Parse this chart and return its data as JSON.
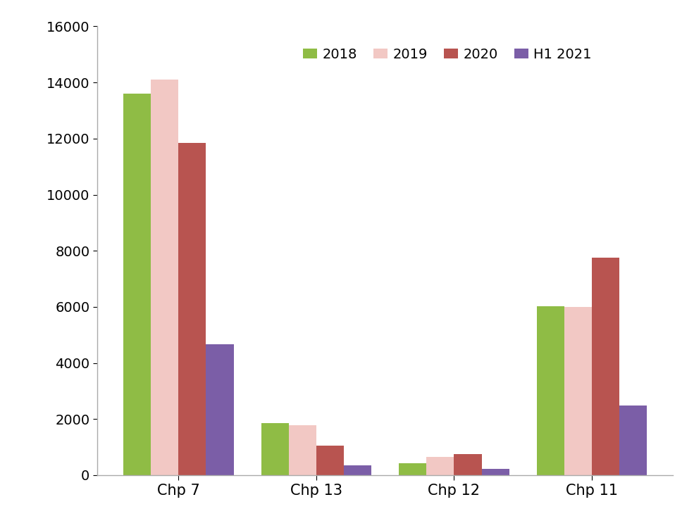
{
  "categories": [
    "Chp 7",
    "Chp 13",
    "Chp 12",
    "Chp 11"
  ],
  "series": {
    "2018": [
      13600,
      1850,
      420,
      6020
    ],
    "2019": [
      14100,
      1780,
      660,
      6000
    ],
    "2020": [
      11850,
      1060,
      760,
      7750
    ],
    "H1 2021": [
      4680,
      360,
      220,
      2490
    ]
  },
  "colors": {
    "2018": "#8fbc45",
    "2019": "#f2c8c4",
    "2020": "#b85450",
    "H1 2021": "#7b5ea7"
  },
  "ylim": [
    0,
    16000
  ],
  "yticks": [
    0,
    2000,
    4000,
    6000,
    8000,
    10000,
    12000,
    14000,
    16000
  ],
  "legend_labels": [
    "2018",
    "2019",
    "2020",
    "H1 2021"
  ],
  "background_color": "#ffffff",
  "bar_width": 0.2,
  "figsize": [
    9.85,
    7.5
  ],
  "dpi": 100
}
